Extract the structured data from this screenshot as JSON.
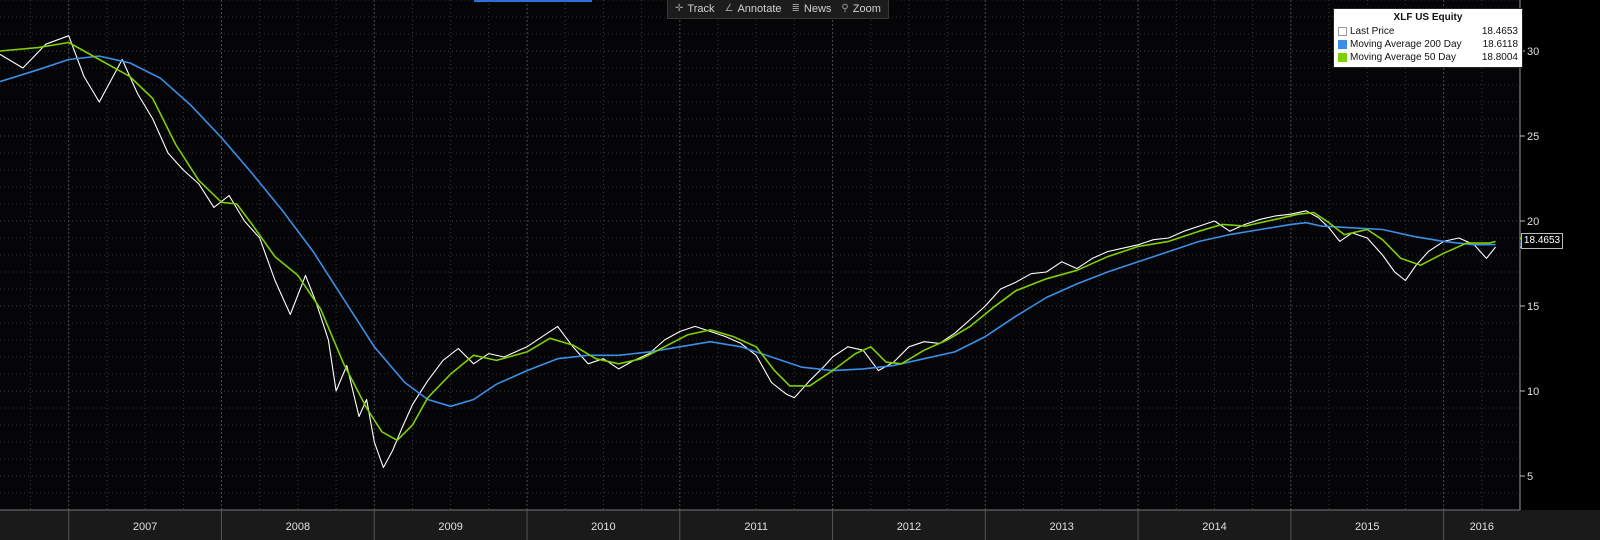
{
  "toolbar": {
    "track": "Track",
    "annotate": "Annotate",
    "news": "News",
    "zoom": "Zoom"
  },
  "legend": {
    "title": "XLF US Equity",
    "items": [
      {
        "label": "Last Price",
        "value": "18.4653",
        "color": "#ffffff"
      },
      {
        "label": "Moving Average 200 Day",
        "value": "18.6118",
        "color": "#3a8fe8"
      },
      {
        "label": "Moving Average 50 Day",
        "value": "18.8004",
        "color": "#7ed000"
      }
    ]
  },
  "last_value_tag": "18.4653",
  "chart_data": {
    "type": "line",
    "title": "XLF US Equity",
    "xlabel": "",
    "ylabel": "",
    "x_range": [
      2006.55,
      2016.5
    ],
    "ylim": [
      3,
      33
    ],
    "y_ticks": [
      5,
      10,
      15,
      20,
      25,
      30
    ],
    "x_tick_labels": [
      "2007",
      "2008",
      "2009",
      "2010",
      "2011",
      "2012",
      "2013",
      "2014",
      "2015",
      "2016"
    ],
    "grid": true,
    "legend_position": "top-right",
    "series": [
      {
        "name": "Last Price",
        "color": "#ffffff",
        "points": [
          [
            2006.55,
            29.8
          ],
          [
            2006.7,
            29.0
          ],
          [
            2006.85,
            30.4
          ],
          [
            2007.0,
            30.9
          ],
          [
            2007.1,
            28.5
          ],
          [
            2007.2,
            27.0
          ],
          [
            2007.35,
            29.5
          ],
          [
            2007.45,
            27.5
          ],
          [
            2007.55,
            26.0
          ],
          [
            2007.65,
            24.0
          ],
          [
            2007.75,
            23.0
          ],
          [
            2007.85,
            22.2
          ],
          [
            2007.95,
            20.8
          ],
          [
            2008.05,
            21.5
          ],
          [
            2008.15,
            20.0
          ],
          [
            2008.25,
            19.0
          ],
          [
            2008.35,
            16.5
          ],
          [
            2008.45,
            14.5
          ],
          [
            2008.55,
            16.8
          ],
          [
            2008.62,
            15.2
          ],
          [
            2008.7,
            13.0
          ],
          [
            2008.75,
            10.0
          ],
          [
            2008.82,
            11.5
          ],
          [
            2008.9,
            8.5
          ],
          [
            2008.95,
            9.5
          ],
          [
            2009.0,
            7.0
          ],
          [
            2009.06,
            5.5
          ],
          [
            2009.12,
            6.5
          ],
          [
            2009.18,
            7.8
          ],
          [
            2009.25,
            9.2
          ],
          [
            2009.35,
            10.6
          ],
          [
            2009.45,
            11.8
          ],
          [
            2009.55,
            12.5
          ],
          [
            2009.65,
            11.6
          ],
          [
            2009.75,
            12.2
          ],
          [
            2009.85,
            12.0
          ],
          [
            2010.0,
            12.6
          ],
          [
            2010.1,
            13.2
          ],
          [
            2010.2,
            13.8
          ],
          [
            2010.3,
            12.6
          ],
          [
            2010.4,
            11.6
          ],
          [
            2010.5,
            11.9
          ],
          [
            2010.6,
            11.3
          ],
          [
            2010.7,
            11.8
          ],
          [
            2010.8,
            12.2
          ],
          [
            2010.9,
            13.0
          ],
          [
            2011.0,
            13.5
          ],
          [
            2011.1,
            13.8
          ],
          [
            2011.2,
            13.5
          ],
          [
            2011.3,
            13.2
          ],
          [
            2011.4,
            12.8
          ],
          [
            2011.5,
            12.1
          ],
          [
            2011.6,
            10.5
          ],
          [
            2011.7,
            9.8
          ],
          [
            2011.75,
            9.6
          ],
          [
            2011.85,
            10.6
          ],
          [
            2011.95,
            11.5
          ],
          [
            2012.0,
            12.0
          ],
          [
            2012.1,
            12.6
          ],
          [
            2012.2,
            12.4
          ],
          [
            2012.3,
            11.2
          ],
          [
            2012.4,
            11.7
          ],
          [
            2012.5,
            12.6
          ],
          [
            2012.6,
            12.9
          ],
          [
            2012.7,
            12.8
          ],
          [
            2012.8,
            13.4
          ],
          [
            2012.9,
            14.2
          ],
          [
            2013.0,
            15.0
          ],
          [
            2013.1,
            16.0
          ],
          [
            2013.2,
            16.4
          ],
          [
            2013.3,
            16.9
          ],
          [
            2013.4,
            17.0
          ],
          [
            2013.5,
            17.6
          ],
          [
            2013.6,
            17.2
          ],
          [
            2013.7,
            17.8
          ],
          [
            2013.8,
            18.2
          ],
          [
            2013.9,
            18.4
          ],
          [
            2014.0,
            18.6
          ],
          [
            2014.1,
            18.9
          ],
          [
            2014.2,
            19.0
          ],
          [
            2014.3,
            19.4
          ],
          [
            2014.4,
            19.7
          ],
          [
            2014.5,
            20.0
          ],
          [
            2014.6,
            19.4
          ],
          [
            2014.7,
            19.8
          ],
          [
            2014.8,
            20.1
          ],
          [
            2014.9,
            20.3
          ],
          [
            2015.0,
            20.4
          ],
          [
            2015.1,
            20.6
          ],
          [
            2015.18,
            20.2
          ],
          [
            2015.25,
            19.6
          ],
          [
            2015.32,
            18.8
          ],
          [
            2015.4,
            19.3
          ],
          [
            2015.5,
            19.0
          ],
          [
            2015.6,
            18.0
          ],
          [
            2015.68,
            17.0
          ],
          [
            2015.75,
            16.5
          ],
          [
            2015.82,
            17.4
          ],
          [
            2015.9,
            18.2
          ],
          [
            2016.0,
            18.8
          ],
          [
            2016.1,
            19.0
          ],
          [
            2016.2,
            18.6
          ],
          [
            2016.28,
            17.8
          ],
          [
            2016.34,
            18.47
          ]
        ]
      },
      {
        "name": "Moving Average 200 Day",
        "color": "#3a8fe8",
        "points": [
          [
            2006.55,
            28.2
          ],
          [
            2006.8,
            28.9
          ],
          [
            2007.0,
            29.5
          ],
          [
            2007.2,
            29.7
          ],
          [
            2007.4,
            29.3
          ],
          [
            2007.6,
            28.4
          ],
          [
            2007.8,
            26.8
          ],
          [
            2008.0,
            24.9
          ],
          [
            2008.2,
            22.8
          ],
          [
            2008.4,
            20.6
          ],
          [
            2008.6,
            18.2
          ],
          [
            2008.8,
            15.4
          ],
          [
            2009.0,
            12.6
          ],
          [
            2009.2,
            10.5
          ],
          [
            2009.35,
            9.5
          ],
          [
            2009.5,
            9.1
          ],
          [
            2009.65,
            9.5
          ],
          [
            2009.8,
            10.4
          ],
          [
            2010.0,
            11.2
          ],
          [
            2010.2,
            11.9
          ],
          [
            2010.4,
            12.1
          ],
          [
            2010.6,
            12.1
          ],
          [
            2010.8,
            12.3
          ],
          [
            2011.0,
            12.6
          ],
          [
            2011.2,
            12.9
          ],
          [
            2011.4,
            12.6
          ],
          [
            2011.6,
            12.0
          ],
          [
            2011.8,
            11.4
          ],
          [
            2012.0,
            11.2
          ],
          [
            2012.2,
            11.3
          ],
          [
            2012.4,
            11.5
          ],
          [
            2012.6,
            11.9
          ],
          [
            2012.8,
            12.3
          ],
          [
            2013.0,
            13.2
          ],
          [
            2013.2,
            14.4
          ],
          [
            2013.4,
            15.5
          ],
          [
            2013.6,
            16.3
          ],
          [
            2013.8,
            17.0
          ],
          [
            2014.0,
            17.6
          ],
          [
            2014.2,
            18.2
          ],
          [
            2014.4,
            18.8
          ],
          [
            2014.6,
            19.2
          ],
          [
            2014.8,
            19.5
          ],
          [
            2015.0,
            19.8
          ],
          [
            2015.1,
            19.9
          ],
          [
            2015.2,
            19.7
          ],
          [
            2015.4,
            19.6
          ],
          [
            2015.6,
            19.5
          ],
          [
            2015.8,
            19.1
          ],
          [
            2016.0,
            18.8
          ],
          [
            2016.2,
            18.6
          ],
          [
            2016.34,
            18.61
          ]
        ]
      },
      {
        "name": "Moving Average 50 Day",
        "color": "#7ed000",
        "points": [
          [
            2006.55,
            30.0
          ],
          [
            2006.8,
            30.2
          ],
          [
            2007.0,
            30.5
          ],
          [
            2007.2,
            29.5
          ],
          [
            2007.4,
            28.5
          ],
          [
            2007.55,
            27.2
          ],
          [
            2007.7,
            24.5
          ],
          [
            2007.85,
            22.4
          ],
          [
            2008.0,
            21.1
          ],
          [
            2008.1,
            21.0
          ],
          [
            2008.2,
            19.8
          ],
          [
            2008.35,
            17.9
          ],
          [
            2008.5,
            16.8
          ],
          [
            2008.65,
            14.8
          ],
          [
            2008.8,
            11.6
          ],
          [
            2008.95,
            9.0
          ],
          [
            2009.05,
            7.6
          ],
          [
            2009.15,
            7.1
          ],
          [
            2009.25,
            8.0
          ],
          [
            2009.35,
            9.6
          ],
          [
            2009.5,
            11.0
          ],
          [
            2009.65,
            12.1
          ],
          [
            2009.8,
            11.8
          ],
          [
            2010.0,
            12.3
          ],
          [
            2010.15,
            13.1
          ],
          [
            2010.3,
            12.7
          ],
          [
            2010.45,
            11.9
          ],
          [
            2010.6,
            11.6
          ],
          [
            2010.75,
            11.9
          ],
          [
            2010.9,
            12.6
          ],
          [
            2011.05,
            13.3
          ],
          [
            2011.2,
            13.6
          ],
          [
            2011.35,
            13.2
          ],
          [
            2011.5,
            12.6
          ],
          [
            2011.62,
            11.2
          ],
          [
            2011.72,
            10.3
          ],
          [
            2011.85,
            10.3
          ],
          [
            2012.0,
            11.2
          ],
          [
            2012.15,
            12.2
          ],
          [
            2012.25,
            12.6
          ],
          [
            2012.35,
            11.7
          ],
          [
            2012.45,
            11.6
          ],
          [
            2012.6,
            12.4
          ],
          [
            2012.75,
            13.0
          ],
          [
            2012.9,
            13.8
          ],
          [
            2013.05,
            14.9
          ],
          [
            2013.2,
            15.9
          ],
          [
            2013.4,
            16.6
          ],
          [
            2013.6,
            17.1
          ],
          [
            2013.8,
            17.9
          ],
          [
            2014.0,
            18.5
          ],
          [
            2014.2,
            18.8
          ],
          [
            2014.4,
            19.4
          ],
          [
            2014.55,
            19.8
          ],
          [
            2014.7,
            19.7
          ],
          [
            2014.9,
            20.1
          ],
          [
            2015.05,
            20.4
          ],
          [
            2015.15,
            20.5
          ],
          [
            2015.25,
            19.9
          ],
          [
            2015.35,
            19.2
          ],
          [
            2015.5,
            19.5
          ],
          [
            2015.6,
            18.9
          ],
          [
            2015.72,
            17.8
          ],
          [
            2015.85,
            17.4
          ],
          [
            2016.0,
            18.1
          ],
          [
            2016.15,
            18.7
          ],
          [
            2016.3,
            18.7
          ],
          [
            2016.34,
            18.8
          ]
        ]
      }
    ]
  }
}
